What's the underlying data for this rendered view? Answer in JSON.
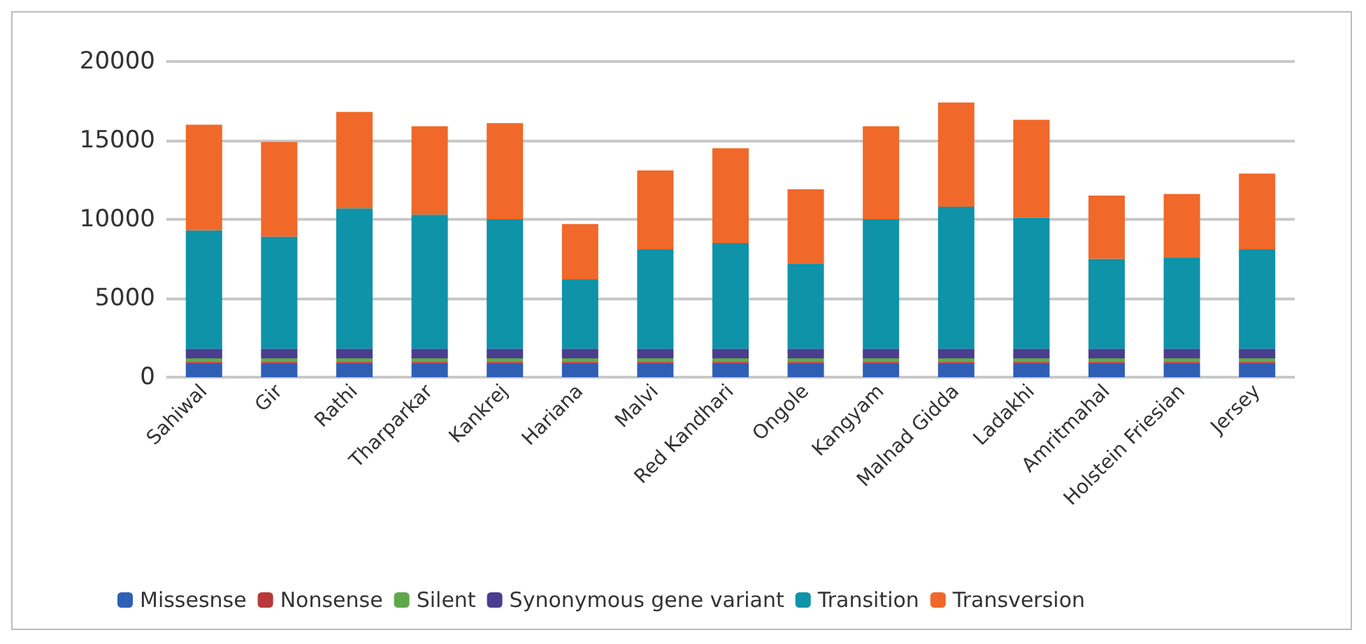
{
  "chart_data": {
    "type": "bar",
    "stacked": true,
    "categories": [
      "Sahiwal",
      "Gir",
      "Rathi",
      "Tharparkar",
      "Kankrej",
      "Hariana",
      "Malvi",
      "Red Kandhari",
      "Ongole",
      "Kangyam",
      "Malnad Gidda",
      "Ladakhi",
      "Amritmahal",
      "Holstein Friesian",
      "Jersey"
    ],
    "series": [
      {
        "name": "Missesnse",
        "color": "#2e5fb5",
        "values": [
          900,
          900,
          900,
          900,
          900,
          900,
          900,
          900,
          900,
          900,
          900,
          900,
          900,
          900,
          900
        ]
      },
      {
        "name": "Nonsense",
        "color": "#b83a3a",
        "values": [
          100,
          100,
          100,
          100,
          100,
          100,
          100,
          100,
          100,
          100,
          100,
          100,
          100,
          100,
          100
        ]
      },
      {
        "name": "Silent",
        "color": "#5fa84a",
        "values": [
          200,
          200,
          200,
          200,
          200,
          200,
          200,
          200,
          200,
          200,
          200,
          200,
          200,
          200,
          200
        ]
      },
      {
        "name": "Synonymous gene variant",
        "color": "#4b3d8f",
        "values": [
          600,
          600,
          600,
          600,
          600,
          600,
          600,
          600,
          600,
          600,
          600,
          600,
          600,
          600,
          600
        ]
      },
      {
        "name": "Transition",
        "color": "#0e93a8",
        "values": [
          7500,
          7100,
          8900,
          8500,
          8200,
          4400,
          6300,
          6700,
          5400,
          8200,
          9000,
          8300,
          5700,
          5800,
          6300
        ]
      },
      {
        "name": "Transversion",
        "color": "#f0682a",
        "values": [
          6700,
          6000,
          6100,
          5600,
          6100,
          3500,
          5000,
          6000,
          4700,
          5900,
          6600,
          6200,
          4000,
          4000,
          4800
        ]
      }
    ],
    "ylim": [
      0,
      20000
    ],
    "yticks": [
      0,
      5000,
      10000,
      15000,
      20000
    ],
    "grid": "y",
    "legend": "bottom"
  }
}
